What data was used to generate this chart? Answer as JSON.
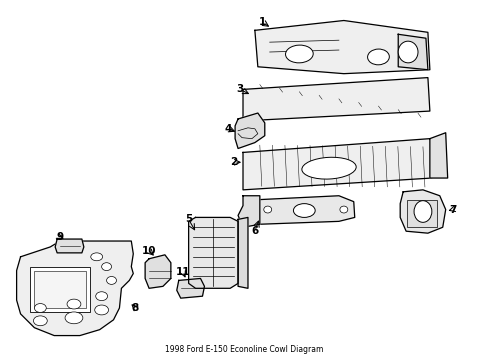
{
  "title": "1998 Ford E-150 Econoline Cowl Diagram",
  "background_color": "#ffffff",
  "line_color": "#000000",
  "figsize": [
    4.89,
    3.6
  ],
  "dpi": 100
}
